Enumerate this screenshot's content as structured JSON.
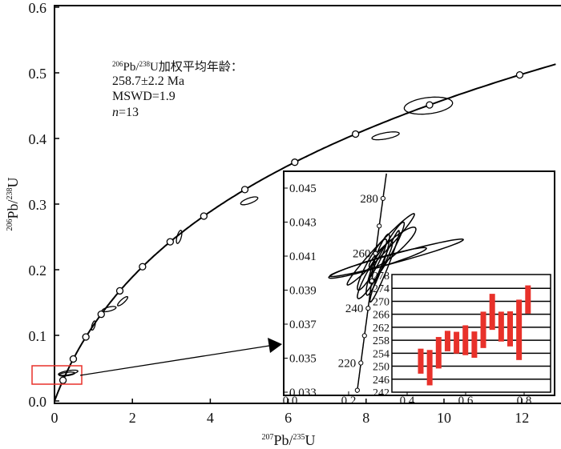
{
  "chart_data": [
    {
      "type": "scatter",
      "subtype": "U-Pb concordia",
      "xlabel_sup": "207",
      "xlabel_main": "Pb/",
      "xlabel_sup2": "235",
      "xlabel_end": "U",
      "ylabel_sup": "206",
      "ylabel_main": "Pb/",
      "ylabel_sup2": "238",
      "ylabel_end": "U",
      "xlim": [
        0,
        13
      ],
      "ylim": [
        0,
        0.6
      ],
      "xticks": [
        "0",
        "2",
        "4",
        "6",
        "8",
        "10",
        "12"
      ],
      "yticks": [
        "0.0",
        "0.1",
        "0.2",
        "0.3",
        "0.4",
        "0.5",
        "0.6"
      ],
      "concordia_marker_ages_ma": [
        200,
        400,
        600,
        800,
        1000,
        1200,
        1400,
        1600,
        1800,
        2000,
        2200,
        2400,
        2600
      ],
      "annotation": {
        "line1_sup": "206",
        "line1_a": "Pb/",
        "line1_sup2": "238",
        "line1_b": "U加权平均年龄：",
        "line2": "258.7±2.2 Ma",
        "line3": "MSWD=1.9",
        "line4_n": "n",
        "line4_rest": "=13"
      },
      "ellipses": [
        {
          "x": 9.6,
          "y": 0.45,
          "sx": 0.62,
          "sy": 0.013,
          "rho": 0.3
        },
        {
          "x": 8.5,
          "y": 0.404,
          "sx": 0.35,
          "sy": 0.006,
          "rho": 0.6
        },
        {
          "x": 5.0,
          "y": 0.305,
          "sx": 0.22,
          "sy": 0.006,
          "rho": 0.7
        },
        {
          "x": 3.2,
          "y": 0.25,
          "sx": 0.07,
          "sy": 0.01,
          "rho": 0.6
        },
        {
          "x": 1.75,
          "y": 0.152,
          "sx": 0.13,
          "sy": 0.007,
          "rho": 0.85
        },
        {
          "x": 1.4,
          "y": 0.14,
          "sx": 0.18,
          "sy": 0.004,
          "rho": 0.6
        },
        {
          "x": 1.0,
          "y": 0.115,
          "sx": 0.05,
          "sy": 0.007,
          "rho": 0.6
        },
        {
          "x": 0.35,
          "y": 0.043,
          "sx": 0.25,
          "sy": 0.004,
          "rho": 0.6
        },
        {
          "x": 0.32,
          "y": 0.041,
          "sx": 0.2,
          "sy": 0.003,
          "rho": 0.5
        }
      ]
    },
    {
      "type": "scatter",
      "subtype": "concordia inset",
      "xlim": [
        0.0,
        0.9
      ],
      "ylim": [
        0.033,
        0.046
      ],
      "xticks": [
        "0.0",
        "0.2",
        "0.4",
        "0.6",
        "0.8"
      ],
      "yticks": [
        "0.033",
        "0.035",
        "0.037",
        "0.039",
        "0.041",
        "0.043",
        "0.045"
      ],
      "marker_ages_ma": [
        210,
        220,
        230,
        240,
        250,
        260,
        270,
        280
      ],
      "labeled_ages": [
        "220",
        "240",
        "260",
        "280"
      ],
      "ellipses": [
        {
          "x": 0.364,
          "y": 0.0409,
          "sx": 0.228,
          "sy": 0.0011,
          "rho": 0.97
        },
        {
          "x": 0.31,
          "y": 0.0414,
          "sx": 0.115,
          "sy": 0.0021,
          "rho": 0.98
        },
        {
          "x": 0.323,
          "y": 0.0404,
          "sx": 0.05,
          "sy": 0.0021,
          "rho": 0.97
        },
        {
          "x": 0.299,
          "y": 0.0406,
          "sx": 0.167,
          "sy": 0.0009,
          "rho": 0.95
        },
        {
          "x": 0.3,
          "y": 0.0405,
          "sx": 0.04,
          "sy": 0.0018,
          "rho": 0.9
        },
        {
          "x": 0.29,
          "y": 0.0402,
          "sx": 0.06,
          "sy": 0.0017,
          "rho": 0.93
        },
        {
          "x": 0.33,
          "y": 0.0412,
          "sx": 0.06,
          "sy": 0.0018,
          "rho": 0.95
        },
        {
          "x": 0.28,
          "y": 0.0405,
          "sx": 0.05,
          "sy": 0.0015,
          "rho": 0.92
        },
        {
          "x": 0.35,
          "y": 0.0415,
          "sx": 0.08,
          "sy": 0.0012,
          "rho": 0.9
        }
      ]
    },
    {
      "type": "bar",
      "subtype": "weighted mean age error bars (Ma)",
      "ylim": [
        242,
        278
      ],
      "yticks": [
        "278",
        "274",
        "270",
        "266",
        "262",
        "258",
        "254",
        "250",
        "246",
        "242"
      ],
      "bars": [
        [
          247.7,
          255.4
        ],
        [
          244.1,
          255.0
        ],
        [
          249.3,
          259.0
        ],
        [
          254.6,
          260.9
        ],
        [
          253.9,
          260.6
        ],
        [
          253.4,
          262.6
        ],
        [
          252.6,
          260.7
        ],
        [
          255.6,
          266.8
        ],
        [
          261.2,
          272.3
        ],
        [
          257.6,
          266.8
        ],
        [
          256.1,
          266.9
        ],
        [
          251.9,
          270.5
        ],
        [
          266.2,
          274.9
        ]
      ],
      "bar_color": "#e8312a"
    }
  ]
}
